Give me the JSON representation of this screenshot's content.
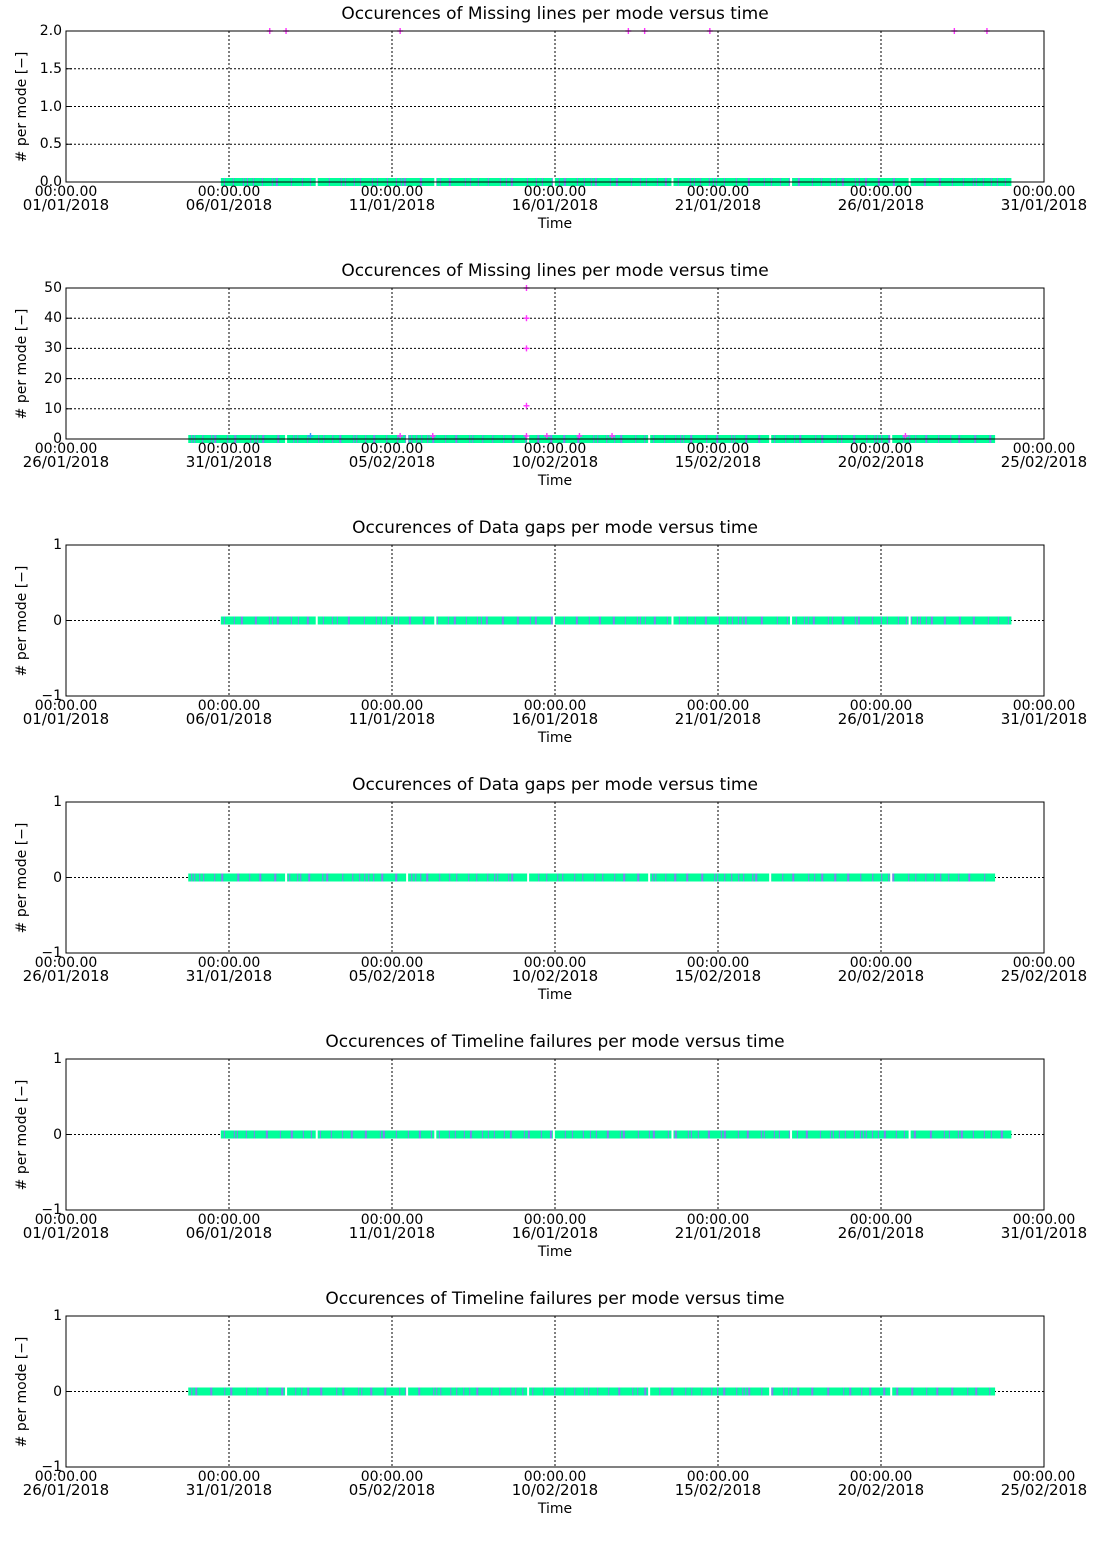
{
  "chart_data": [
    {
      "type": "scatter",
      "title": "Occurences of Missing lines per mode versus time",
      "xlabel": "Time",
      "ylabel": "# per mode [−]",
      "xlim": [
        "2018-01-01",
        "2018-01-31"
      ],
      "ylim": [
        0,
        2
      ],
      "ytick_values": [
        0,
        0.5,
        1,
        1.5,
        2
      ],
      "ytick_labels": [
        "0.0",
        "0.5",
        "1.0",
        "1.5",
        "2.0"
      ],
      "x_tick_dates": [
        "2018-01-01",
        "2018-01-06",
        "2018-01-11",
        "2018-01-16",
        "2018-01-21",
        "2018-01-26",
        "2018-01-31"
      ],
      "x_tick_time": "00:00.00",
      "x_tick_dates_labels": [
        "01/01/2018",
        "06/01/2018",
        "11/01/2018",
        "16/01/2018",
        "21/01/2018",
        "26/01/2018",
        "31/01/2018"
      ],
      "grid": true,
      "band": {
        "start": "2018-01-05 18:00",
        "end": "2018-01-30 00:00",
        "value": 0
      },
      "points": [
        {
          "x": "2018-01-07 06:00",
          "y": 2
        },
        {
          "x": "2018-01-07 18:00",
          "y": 2
        },
        {
          "x": "2018-01-11 06:00",
          "y": 2
        },
        {
          "x": "2018-01-18 06:00",
          "y": 2
        },
        {
          "x": "2018-01-18 18:00",
          "y": 2
        },
        {
          "x": "2018-01-20 18:00",
          "y": 2
        },
        {
          "x": "2018-01-28 06:00",
          "y": 2
        },
        {
          "x": "2018-01-29 06:00",
          "y": 2
        }
      ],
      "cross_points": []
    },
    {
      "type": "scatter",
      "title": "Occurences of Missing lines per mode versus time",
      "xlabel": "Time",
      "ylabel": "# per mode [−]",
      "xlim": [
        "2018-01-26",
        "2018-02-25"
      ],
      "ylim": [
        0,
        50
      ],
      "ytick_values": [
        0,
        10,
        20,
        30,
        40,
        50
      ],
      "ytick_labels": [
        "0",
        "10",
        "20",
        "30",
        "40",
        "50"
      ],
      "x_tick_dates": [
        "2018-01-26",
        "2018-01-31",
        "2018-02-05",
        "2018-02-10",
        "2018-02-15",
        "2018-02-20",
        "2018-02-25"
      ],
      "x_tick_time": "00:00.00",
      "x_tick_dates_labels": [
        "26/01/2018",
        "31/01/2018",
        "05/02/2018",
        "10/02/2018",
        "15/02/2018",
        "20/02/2018",
        "25/02/2018"
      ],
      "grid": true,
      "band": {
        "start": "2018-01-29 18:00",
        "end": "2018-02-23 12:00",
        "value": 0
      },
      "points": [
        {
          "x": "2018-02-05 06:00",
          "y": 1
        },
        {
          "x": "2018-02-06 06:00",
          "y": 1
        },
        {
          "x": "2018-02-09 03:00",
          "y": 1
        },
        {
          "x": "2018-02-09 03:00",
          "y": 11
        },
        {
          "x": "2018-02-09 03:00",
          "y": 30
        },
        {
          "x": "2018-02-09 03:00",
          "y": 40
        },
        {
          "x": "2018-02-09 03:00",
          "y": 50
        },
        {
          "x": "2018-02-09 18:00",
          "y": 1
        },
        {
          "x": "2018-02-10 18:00",
          "y": 1
        },
        {
          "x": "2018-02-11 18:00",
          "y": 1
        },
        {
          "x": "2018-02-20 18:00",
          "y": 1
        }
      ],
      "cross_points": [
        {
          "x": "2018-02-02 12:00",
          "y": 1
        }
      ]
    },
    {
      "type": "scatter",
      "title": "Occurences of Data gaps per mode versus time",
      "xlabel": "Time",
      "ylabel": "# per mode [−]",
      "xlim": [
        "2018-01-01",
        "2018-01-31"
      ],
      "ylim": [
        -1,
        1
      ],
      "ytick_values": [
        -1,
        0,
        1
      ],
      "ytick_labels": [
        "−1",
        "0",
        "1"
      ],
      "x_tick_dates": [
        "2018-01-01",
        "2018-01-06",
        "2018-01-11",
        "2018-01-16",
        "2018-01-21",
        "2018-01-26",
        "2018-01-31"
      ],
      "x_tick_time": "00:00.00",
      "x_tick_dates_labels": [
        "01/01/2018",
        "06/01/2018",
        "11/01/2018",
        "16/01/2018",
        "21/01/2018",
        "26/01/2018",
        "31/01/2018"
      ],
      "grid": true,
      "band": {
        "start": "2018-01-05 18:00",
        "end": "2018-01-30 00:00",
        "value": 0
      },
      "points": [],
      "cross_points": []
    },
    {
      "type": "scatter",
      "title": "Occurences of Data gaps per mode versus time",
      "xlabel": "Time",
      "ylabel": "# per mode [−]",
      "xlim": [
        "2018-01-26",
        "2018-02-25"
      ],
      "ylim": [
        -1,
        1
      ],
      "ytick_values": [
        -1,
        0,
        1
      ],
      "ytick_labels": [
        "−1",
        "0",
        "1"
      ],
      "x_tick_dates": [
        "2018-01-26",
        "2018-01-31",
        "2018-02-05",
        "2018-02-10",
        "2018-02-15",
        "2018-02-20",
        "2018-02-25"
      ],
      "x_tick_time": "00:00.00",
      "x_tick_dates_labels": [
        "26/01/2018",
        "31/01/2018",
        "05/02/2018",
        "10/02/2018",
        "15/02/2018",
        "20/02/2018",
        "25/02/2018"
      ],
      "grid": true,
      "band": {
        "start": "2018-01-29 18:00",
        "end": "2018-02-23 12:00",
        "value": 0
      },
      "points": [],
      "cross_points": []
    },
    {
      "type": "scatter",
      "title": "Occurences of Timeline failures per mode versus time",
      "xlabel": "Time",
      "ylabel": "# per mode [−]",
      "xlim": [
        "2018-01-01",
        "2018-01-31"
      ],
      "ylim": [
        -1,
        1
      ],
      "ytick_values": [
        -1,
        0,
        1
      ],
      "ytick_labels": [
        "−1",
        "0",
        "1"
      ],
      "x_tick_dates": [
        "2018-01-01",
        "2018-01-06",
        "2018-01-11",
        "2018-01-16",
        "2018-01-21",
        "2018-01-26",
        "2018-01-31"
      ],
      "x_tick_time": "00:00.00",
      "x_tick_dates_labels": [
        "01/01/2018",
        "06/01/2018",
        "11/01/2018",
        "16/01/2018",
        "21/01/2018",
        "26/01/2018",
        "31/01/2018"
      ],
      "grid": true,
      "band": {
        "start": "2018-01-05 18:00",
        "end": "2018-01-30 00:00",
        "value": 0
      },
      "points": [],
      "cross_points": []
    },
    {
      "type": "scatter",
      "title": "Occurences of Timeline failures per mode versus time",
      "xlabel": "Time",
      "ylabel": "# per mode [−]",
      "xlim": [
        "2018-01-26",
        "2018-02-25"
      ],
      "ylim": [
        -1,
        1
      ],
      "ytick_values": [
        -1,
        0,
        1
      ],
      "ytick_labels": [
        "−1",
        "0",
        "1"
      ],
      "x_tick_dates": [
        "2018-01-26",
        "2018-01-31",
        "2018-02-05",
        "2018-02-10",
        "2018-02-15",
        "2018-02-20",
        "2018-02-25"
      ],
      "x_tick_time": "00:00.00",
      "x_tick_dates_labels": [
        "26/01/2018",
        "31/01/2018",
        "05/02/2018",
        "10/02/2018",
        "15/02/2018",
        "20/02/2018",
        "25/02/2018"
      ],
      "grid": true,
      "band": {
        "start": "2018-01-29 18:00",
        "end": "2018-02-23 12:00",
        "value": 0
      },
      "points": [],
      "cross_points": []
    }
  ],
  "colors": {
    "band": "#00ff99",
    "band_stripe": "#9966ff",
    "points": "#ff33ff",
    "cross": "#3399ff",
    "axes": "#000000",
    "background": "#ffffff"
  }
}
